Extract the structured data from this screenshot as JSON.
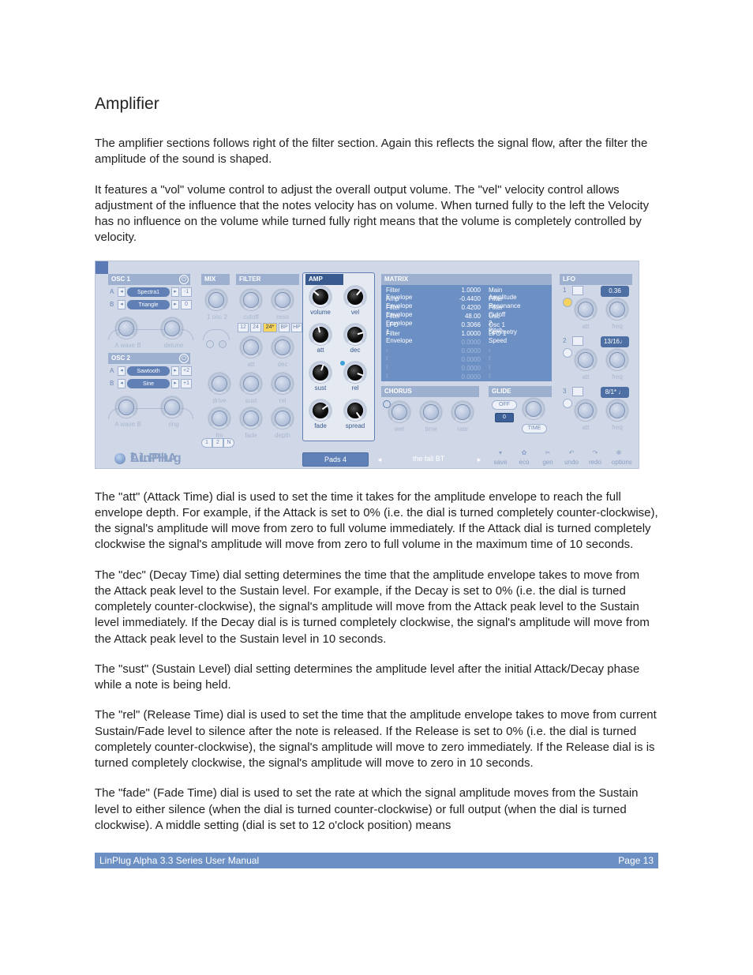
{
  "doc": {
    "section_title": "Amplifier",
    "p1a": "The amplifier sections follows right of the filter section. Again this reflects the signal flow, after the filter the amplitude of the sound is shaped.",
    "p1b": "It features a \"vol\" volume control to adjust the overall output volume. The \"vel\" velocity control allows adjustment of the influence that the notes velocity has on volume. When turned fully to the left the Velocity has no influence on the volume while turned fully right means that the volume is completely controlled by velocity.",
    "p2": "The \"att\" (Attack Time) dial is used to set the time it takes for the amplitude envelope to reach the full envelope depth. For example, if the Attack is set to 0% (i.e. the dial is turned completely counter-clockwise), the signal's amplitude will move from zero to full volume immediately. If the Attack dial is turned completely clockwise the signal's amplitude will move from zero to full volume in the maximum time of 10 seconds.",
    "p3": "The \"dec\" (Decay Time) dial setting determines the time that the amplitude envelope takes to move from the Attack peak level to the Sustain level. For example, if the Decay is set to 0% (i.e. the dial is turned completely counter-clockwise), the signal's amplitude will move from the Attack peak level to the Sustain level immediately. If the Decay dial is is turned completely clockwise, the signal's amplitude will move from the Attack peak level to the Sustain level in 10 seconds.",
    "p4": "The \"sust\" (Sustain Level) dial setting determines the amplitude level after the initial Attack/Decay phase while a note is being held.",
    "p5": "The \"rel\" (Release Time) dial is used to set the time that the amplitude envelope takes to move from current Sustain/Fade level to silence after the note is released. If the Release is set to 0% (i.e. the dial is turned completely counter-clockwise), the signal's amplitude will move to zero immediately. If the Release dial is is turned completely clockwise, the signal's amplitude will move to zero in 10 seconds.",
    "p6": "The \"fade\" (Fade Time) dial is used to set the rate at which the signal amplitude moves from the Sustain level to either silence (when the dial is turned counter-clockwise) or full output (when the dial is turned clockwise). A middle setting (dial is set to 12 o'clock position) means",
    "footer_left": "LinPlug Alpha 3.3 Series User Manual",
    "footer_right": "Page 13"
  },
  "ui": {
    "osc1": {
      "title": "OSC 1",
      "rowA": "A",
      "rowB": "B",
      "waveA": "Spectra1",
      "waveB": "Triangle",
      "semiA": "-1",
      "semiB": "0",
      "knobs": [
        "A wave B",
        "detune"
      ]
    },
    "osc2": {
      "title": "OSC 2",
      "rowA": "A",
      "rowB": "B",
      "waveA": "Sawtooth",
      "waveB": "Sine",
      "semiA": "+2",
      "semiB": "+1",
      "knobs": [
        "A wave B",
        "ring"
      ]
    },
    "mix": {
      "title": "MIX",
      "lbl": "1 osc 2"
    },
    "filter": {
      "title": "FILTER",
      "knobs1": [
        "cutoff",
        "reso"
      ],
      "knobs2": [
        "att",
        "dec"
      ],
      "knobs3": [
        "drive",
        "sust",
        "rel"
      ],
      "knobs4": [
        "fm",
        "fade",
        "depth"
      ],
      "modes": [
        "12",
        "24",
        "24*",
        "BP",
        "HP"
      ]
    },
    "amp": {
      "title": "AMP",
      "rows": [
        [
          "volume",
          "vel"
        ],
        [
          "att",
          "dec"
        ],
        [
          "sust",
          "rel"
        ],
        [
          "fade",
          "spread"
        ]
      ]
    },
    "matrix": {
      "title": "MATRIX",
      "rows": [
        {
          "src": "Filter Envelope",
          "val": "1.0000",
          "dst": "Main Amplitude"
        },
        {
          "src": "Amp Envelope",
          "val": "-0.4400",
          "dst": "Filter Resonance"
        },
        {
          "src": "Filter Envelope",
          "val": "0.4200",
          "dst": "Filter Cutoff"
        },
        {
          "src": "Filter Envelope",
          "val": "48.00",
          "dst": "Osc 2 Pitch"
        },
        {
          "src": "LFO 1",
          "val": "0.3066",
          "dst": "Osc 1 Symmetry"
        },
        {
          "src": "Filter Envelope",
          "val": "1.0000",
          "dst": "LFO 1 Speed"
        },
        {
          "src": "- - -",
          "val": "0.0000",
          "dst": "- - -",
          "em": true
        },
        {
          "src": "- - -",
          "val": "0.0000",
          "dst": "- - -",
          "em": true
        },
        {
          "src": "- - -",
          "val": "0.0000",
          "dst": "- - -",
          "em": true
        },
        {
          "src": "- - -",
          "val": "0.0000",
          "dst": "- - -",
          "em": true
        },
        {
          "src": "- - -",
          "val": "0.0000",
          "dst": "- - -",
          "em": true
        }
      ]
    },
    "chorus": {
      "title": "CHORUS",
      "knobs": [
        "wet",
        "time",
        "rate"
      ]
    },
    "glide": {
      "title": "GLIDE",
      "off": "OFF",
      "zero": "0",
      "time": "TIME"
    },
    "lfo": {
      "title": "LFO",
      "slots": [
        {
          "n": "1",
          "rate": "0.36"
        },
        {
          "n": "2",
          "rate": "13/16♩"
        },
        {
          "n": "3",
          "rate": "8/1* ♩"
        }
      ],
      "knobs": [
        "att",
        "freq"
      ]
    },
    "voice": {
      "btns": [
        "1",
        "2",
        "N"
      ]
    },
    "bottom": {
      "logo": "LinPlug",
      "prod": "ALPHA",
      "sup": "3",
      "preset_cat": "Pads 4",
      "preset_name": "the fall BT",
      "fns": [
        "save",
        "eco",
        "gen",
        "undo",
        "redo",
        "options"
      ]
    }
  }
}
